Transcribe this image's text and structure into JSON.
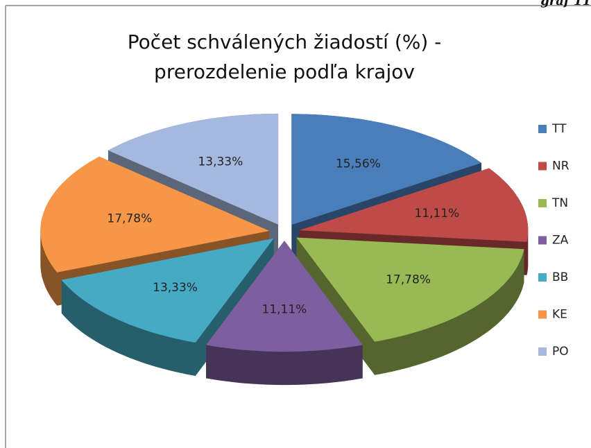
{
  "chart_data": {
    "type": "pie",
    "corner_label": "graf 11",
    "title": "Počet schválených žiadostí (%) -",
    "subtitle": "prerozdelenie podľa krajov",
    "categories": [
      "TT",
      "NR",
      "TN",
      "ZA",
      "BB",
      "KE",
      "PO"
    ],
    "values": [
      15.56,
      11.11,
      17.78,
      11.11,
      13.33,
      17.78,
      13.33
    ],
    "value_labels": [
      "15,56%",
      "11,11%",
      "17,78%",
      "11,11%",
      "13,33%",
      "17,78%",
      "13,33%"
    ],
    "colors": [
      "#4a7ebb",
      "#be4b48",
      "#98b954",
      "#7d5fa0",
      "#46aac5",
      "#f79646",
      "#a5b9de"
    ],
    "legend": "right"
  }
}
